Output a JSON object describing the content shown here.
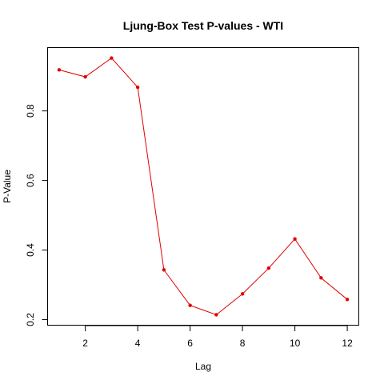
{
  "chart_data": {
    "type": "line",
    "title": "Ljung-Box Test P-values - WTI",
    "xlabel": "Lag",
    "ylabel": "P-Value",
    "x": [
      1,
      2,
      3,
      4,
      5,
      6,
      7,
      8,
      9,
      10,
      11,
      12
    ],
    "series": [
      {
        "values": [
          0.918,
          0.898,
          0.952,
          0.868,
          0.343,
          0.241,
          0.214,
          0.274,
          0.348,
          0.432,
          0.32,
          0.258
        ],
        "color": "#e00000"
      }
    ],
    "xticks": [
      2,
      4,
      6,
      8,
      10,
      12
    ],
    "yticks": [
      0.2,
      0.4,
      0.6,
      0.8
    ],
    "xlim": [
      0.56,
      12.44
    ],
    "ylim": [
      0.184,
      0.982
    ],
    "grid": false,
    "legend": "none"
  }
}
